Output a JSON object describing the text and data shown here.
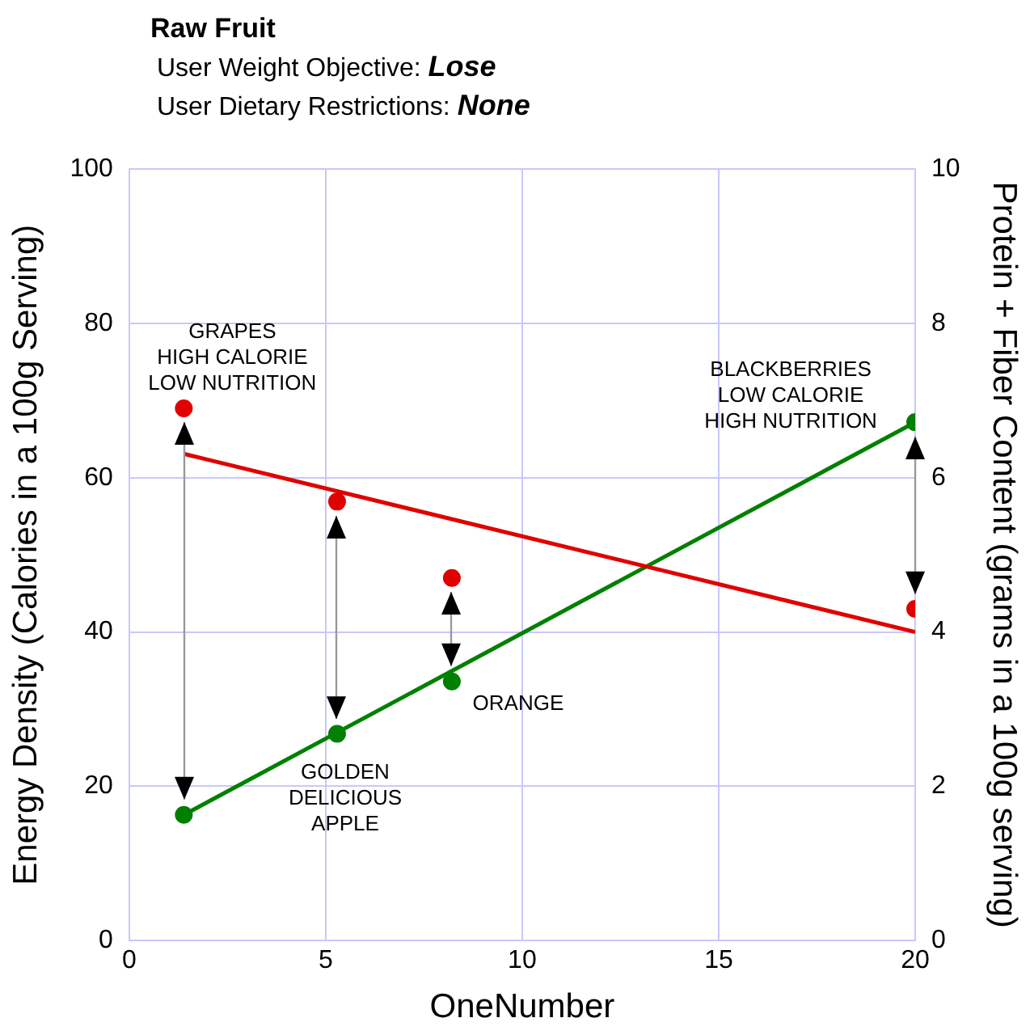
{
  "chart_data": {
    "type": "scatter",
    "title": "Raw Fruit",
    "subtitle": "User Weight Objective: Lose\nUser Dietary Restrictions: None",
    "xlabel": "OneNumber",
    "ylabel": "Energy Density (Calories in a 100g Serving)",
    "y2label": "Protein + Fiber Content (grams in a 100g serving)",
    "xlim": [
      0,
      20
    ],
    "xticks": [
      0,
      5,
      10,
      15,
      20
    ],
    "ylim": [
      0,
      100
    ],
    "yticks": [
      0,
      20,
      40,
      60,
      80,
      100
    ],
    "y2lim": [
      0,
      10
    ],
    "y2ticks": [
      0,
      2,
      4,
      6,
      8,
      10
    ],
    "grid": true,
    "legend": false,
    "marker": "circle",
    "series": [
      {
        "color": "#e00000",
        "x": [
          1.39,
          5.29,
          8.21,
          20
        ],
        "values": [
          69,
          56.9,
          47,
          43
        ]
      },
      {
        "type": "line",
        "marker": "none",
        "color": "#e00000",
        "x": [
          1.39,
          20
        ],
        "values": [
          63.1,
          40
        ]
      },
      {
        "axis": "y2",
        "color": "#008000",
        "x": [
          1.39,
          5.29,
          8.21,
          20
        ],
        "values": [
          1.63,
          2.68,
          3.36,
          6.72
        ]
      },
      {
        "type": "line",
        "marker": "none",
        "axis": "y2",
        "color": "#008000",
        "x": [
          1.39,
          20
        ],
        "values": [
          1.63,
          6.72
        ]
      }
    ],
    "annotations": [
      {
        "text": "GRAPES\nHIGH CALORIE\nLOW NUTRITION",
        "x": 1.39,
        "y": 69
      },
      {
        "text": "GOLDEN\nDELICIOUS\nAPPLE",
        "x": 5.29,
        "y": 26.8
      },
      {
        "text": "ORANGE",
        "x": 8.21,
        "y": 33.6
      },
      {
        "text": "BLACKBERRIES\nLOW CALORIE\nHIGH NUTRITION",
        "x": 20,
        "y": 67.2
      }
    ]
  }
}
